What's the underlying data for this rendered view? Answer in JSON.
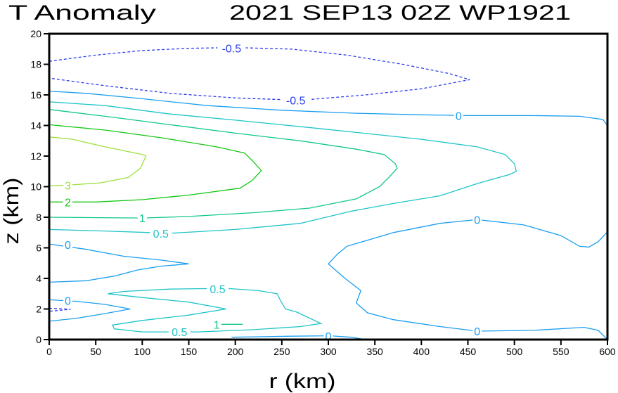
{
  "chart_data": {
    "type": "contour",
    "title_left": "T Anomaly",
    "title_right": "2021 SEP13 02Z  WP1921",
    "xlabel": "r (km)",
    "ylabel": "z (km)",
    "xlim": [
      0,
      600
    ],
    "ylim": [
      0,
      20
    ],
    "xticks": [
      "0",
      "50",
      "100",
      "150",
      "200",
      "250",
      "300",
      "350",
      "400",
      "450",
      "500",
      "550",
      "600"
    ],
    "yticks": [
      "0",
      "2",
      "4",
      "6",
      "8",
      "10",
      "12",
      "14",
      "16",
      "18",
      "20"
    ],
    "grid": false,
    "level_colors": {
      "-0.5": "#2a3cf0",
      "0": "#1a9ef0",
      "0.5": "#1ec4c8",
      "1": "#10c888",
      "2": "#14c814",
      "3": "#9ee03c"
    },
    "contours": [
      {
        "level": "-0.5",
        "dashed": true,
        "points": [
          [
            0,
            18.2
          ],
          [
            50,
            18.6
          ],
          [
            100,
            18.9
          ],
          [
            150,
            19.05
          ],
          [
            200,
            19.1
          ],
          [
            260,
            19.0
          ],
          [
            320,
            18.6
          ],
          [
            380,
            18.0
          ],
          [
            430,
            17.4
          ],
          [
            452,
            17.0
          ],
          [
            400,
            16.4
          ],
          [
            340,
            16.0
          ],
          [
            270,
            15.65
          ],
          [
            200,
            15.8
          ],
          [
            130,
            16.1
          ],
          [
            60,
            16.6
          ],
          [
            0,
            17.1
          ]
        ],
        "labels": [
          [
            196,
            19.05
          ],
          [
            265,
            15.65
          ]
        ]
      },
      {
        "level": "-0.5",
        "dashed": true,
        "points": [
          [
            0,
            2.05
          ],
          [
            23,
            1.98
          ],
          [
            0,
            1.85
          ]
        ],
        "labels": []
      },
      {
        "level": "0",
        "dashed": false,
        "points": [
          [
            0,
            16.25
          ],
          [
            40,
            16.1
          ],
          [
            100,
            15.75
          ],
          [
            170,
            15.3
          ],
          [
            250,
            15.0
          ],
          [
            330,
            14.8
          ],
          [
            400,
            14.7
          ],
          [
            450,
            14.65
          ],
          [
            520,
            14.65
          ],
          [
            570,
            14.6
          ],
          [
            595,
            14.4
          ],
          [
            600,
            14.0
          ]
        ],
        "labels": [
          [
            440,
            14.65
          ]
        ]
      },
      {
        "level": "0",
        "dashed": false,
        "points": [
          [
            600,
            7.05
          ],
          [
            590,
            6.4
          ],
          [
            580,
            6.05
          ],
          [
            570,
            6.1
          ],
          [
            550,
            6.8
          ],
          [
            510,
            7.5
          ],
          [
            460,
            7.85
          ],
          [
            420,
            7.6
          ],
          [
            370,
            7.0
          ],
          [
            320,
            6.1
          ],
          [
            310,
            5.6
          ],
          [
            300,
            4.95
          ],
          [
            318,
            4.0
          ],
          [
            335,
            3.2
          ],
          [
            330,
            2.4
          ],
          [
            342,
            1.75
          ],
          [
            370,
            1.3
          ],
          [
            420,
            0.85
          ],
          [
            460,
            0.55
          ],
          [
            520,
            0.6
          ],
          [
            575,
            0.8
          ],
          [
            590,
            0.6
          ],
          [
            600,
            0.0
          ]
        ],
        "labels": [
          [
            460,
            7.85
          ],
          [
            460,
            0.55
          ]
        ]
      },
      {
        "level": "0",
        "dashed": false,
        "points": [
          [
            0,
            6.25
          ],
          [
            40,
            5.9
          ],
          [
            80,
            5.45
          ],
          [
            120,
            5.2
          ],
          [
            150,
            4.95
          ],
          [
            120,
            4.8
          ],
          [
            95,
            4.55
          ],
          [
            70,
            4.15
          ],
          [
            40,
            3.85
          ],
          [
            0,
            3.75
          ]
        ],
        "labels": [
          [
            20,
            6.2
          ]
        ]
      },
      {
        "level": "0",
        "dashed": false,
        "points": [
          [
            0,
            2.6
          ],
          [
            30,
            2.5
          ],
          [
            60,
            2.3
          ],
          [
            87,
            2.0
          ],
          [
            60,
            1.7
          ],
          [
            30,
            1.4
          ],
          [
            0,
            1.2
          ]
        ],
        "labels": [
          [
            20,
            2.55
          ]
        ]
      },
      {
        "level": "0",
        "dashed": false,
        "points": [
          [
            196,
            0.15
          ],
          [
            260,
            0.22
          ],
          [
            302,
            0.25
          ],
          [
            325,
            0.15
          ],
          [
            340,
            0.0
          ]
        ],
        "labels": [
          [
            300,
            0.22
          ]
        ]
      },
      {
        "level": "0.5",
        "dashed": false,
        "points": [
          [
            0,
            15.55
          ],
          [
            60,
            15.3
          ],
          [
            130,
            14.75
          ],
          [
            200,
            14.35
          ],
          [
            290,
            13.8
          ],
          [
            400,
            13.1
          ],
          [
            460,
            12.6
          ],
          [
            490,
            12.1
          ],
          [
            500,
            11.5
          ],
          [
            502,
            11.0
          ],
          [
            495,
            10.8
          ],
          [
            460,
            10.2
          ],
          [
            420,
            9.4
          ],
          [
            370,
            8.9
          ],
          [
            325,
            8.4
          ],
          [
            270,
            7.6
          ],
          [
            200,
            7.2
          ],
          [
            130,
            6.95
          ],
          [
            60,
            7.1
          ],
          [
            0,
            7.2
          ]
        ],
        "labels": [
          [
            120,
            6.95
          ]
        ]
      },
      {
        "level": "0.5",
        "dashed": false,
        "points": [
          [
            63,
            3.0
          ],
          [
            80,
            3.15
          ],
          [
            130,
            3.3
          ],
          [
            190,
            3.35
          ],
          [
            225,
            3.2
          ],
          [
            245,
            3.0
          ],
          [
            249,
            2.5
          ],
          [
            254,
            2.0
          ],
          [
            266,
            1.8
          ],
          [
            280,
            1.4
          ],
          [
            292,
            1.05
          ],
          [
            270,
            0.85
          ],
          [
            220,
            0.65
          ],
          [
            160,
            0.5
          ],
          [
            100,
            0.5
          ],
          [
            70,
            0.7
          ],
          [
            68,
            0.95
          ],
          [
            100,
            1.25
          ],
          [
            150,
            1.6
          ],
          [
            190,
            2.0
          ],
          [
            150,
            2.45
          ],
          [
            100,
            2.75
          ],
          [
            63,
            3.0
          ]
        ],
        "labels": [
          [
            181,
            3.3
          ],
          [
            140,
            0.5
          ]
        ]
      },
      {
        "level": "1",
        "dashed": false,
        "points": [
          [
            0,
            15.05
          ],
          [
            60,
            14.6
          ],
          [
            130,
            14.05
          ],
          [
            200,
            13.5
          ],
          [
            270,
            13.0
          ],
          [
            330,
            12.45
          ],
          [
            360,
            12.1
          ],
          [
            372,
            11.5
          ],
          [
            374,
            11.2
          ],
          [
            365,
            10.6
          ],
          [
            355,
            10.0
          ],
          [
            330,
            9.2
          ],
          [
            280,
            8.6
          ],
          [
            220,
            8.3
          ],
          [
            150,
            8.05
          ],
          [
            100,
            7.95
          ],
          [
            0,
            8.0
          ]
        ],
        "labels": [
          [
            100,
            7.95
          ]
        ]
      },
      {
        "level": "1",
        "dashed": false,
        "points": [
          [
            178,
            1.0
          ],
          [
            208,
            1.0
          ]
        ],
        "labels": [
          [
            180,
            1.0
          ]
        ]
      },
      {
        "level": "2",
        "dashed": false,
        "points": [
          [
            0,
            14.05
          ],
          [
            60,
            13.7
          ],
          [
            120,
            13.2
          ],
          [
            180,
            12.6
          ],
          [
            210,
            12.2
          ],
          [
            220,
            11.6
          ],
          [
            228,
            11.05
          ],
          [
            218,
            10.4
          ],
          [
            205,
            9.9
          ],
          [
            150,
            9.45
          ],
          [
            100,
            9.15
          ],
          [
            50,
            9.0
          ],
          [
            0,
            9.0
          ]
        ],
        "labels": [
          [
            20,
            9.0
          ]
        ]
      },
      {
        "level": "3",
        "dashed": false,
        "points": [
          [
            0,
            13.25
          ],
          [
            25,
            13.1
          ],
          [
            60,
            12.6
          ],
          [
            100,
            12.1
          ],
          [
            104,
            12.0
          ],
          [
            98,
            11.2
          ],
          [
            85,
            10.6
          ],
          [
            55,
            10.25
          ],
          [
            20,
            10.1
          ],
          [
            0,
            10.05
          ]
        ],
        "labels": [
          [
            20,
            10.1
          ]
        ]
      }
    ]
  }
}
